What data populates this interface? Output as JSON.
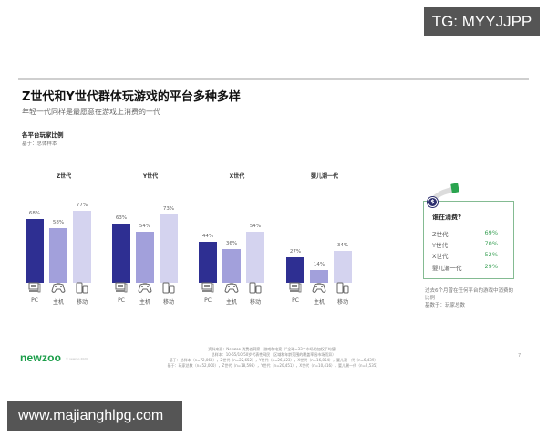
{
  "watermarks": {
    "top": "TG: MYYJJPP",
    "bottom": "www.majianghlpg.com"
  },
  "header": {
    "title": "Z世代和Y世代群体玩游戏的平台多种多样",
    "subtitle": "年轻一代同样是最愿意在游戏上消费的一代"
  },
  "section": {
    "title": "各平台玩家比例",
    "base": "基于：总体样本"
  },
  "colors": {
    "pc": "#2e2f92",
    "console": "#a2a0db",
    "mobile": "#d4d3ef",
    "accent_green": "#3fa35a",
    "card_border": "#84bb92",
    "logo_green": "#1c9e4a"
  },
  "chart_data": {
    "type": "bar",
    "title": "各平台玩家比例",
    "subtitle": "基于：总体样本",
    "xlabel": "",
    "ylabel": "",
    "ylim": [
      0,
      100
    ],
    "grid": false,
    "legend_position": "none",
    "categories": [
      "PC",
      "主机",
      "移动"
    ],
    "category_icons": [
      "pc-icon",
      "gamepad-icon",
      "mobile-icon"
    ],
    "groups": [
      {
        "name": "Z世代",
        "values": [
          68,
          58,
          77
        ],
        "labels": [
          "68%",
          "58%",
          "77%"
        ]
      },
      {
        "name": "Y世代",
        "values": [
          63,
          54,
          73
        ],
        "labels": [
          "63%",
          "54%",
          "73%"
        ]
      },
      {
        "name": "X世代",
        "values": [
          44,
          36,
          54
        ],
        "labels": [
          "44%",
          "36%",
          "54%"
        ]
      },
      {
        "name": "婴儿潮一代",
        "values": [
          27,
          14,
          34
        ],
        "labels": [
          "27%",
          "14%",
          "34%"
        ]
      }
    ],
    "series": [
      {
        "name": "PC",
        "values": [
          68,
          63,
          44,
          27
        ]
      },
      {
        "name": "主机",
        "values": [
          58,
          54,
          36,
          14
        ]
      },
      {
        "name": "移动",
        "values": [
          77,
          73,
          54,
          34
        ]
      }
    ]
  },
  "spend_card": {
    "icon": "dollar-coin-icon",
    "title": "谁在消费?",
    "rows": [
      {
        "label": "Z世代",
        "value": "69%"
      },
      {
        "label": "Y世代",
        "value": "70%"
      },
      {
        "label": "X世代",
        "value": "52%"
      },
      {
        "label": "婴儿潮一代",
        "value": "29%"
      }
    ],
    "note_line1": "过去6个月曾在任何平台的游戏中消费的",
    "note_line2": "比例",
    "note_line3": "基数于：玩家总数"
  },
  "footer": {
    "logo": "newzoo",
    "logo_tag": "© newzoo 2020",
    "source_line1": "资料来源：Newzoo 消费者洞察 - 游戏和电竞（“全球=33个市场的加权平均值）",
    "source_line2": "总样本：10-65/10-50岁代表性网民（区域和年龄范围的覆盖率因市场而异）",
    "source_line3": "基于：总样本（n=72,068），Z世代（n=22,652），Y世代（n=26,123），X世代（n=16,854），婴儿潮一代（n=6,439）",
    "source_line4": "基于：玩家总数（n=52,000），Z世代（n=18,598），Y世代（n=20,451），X世代（n=10,416），婴儿潮一代（n=2,535）",
    "page_number": "7"
  }
}
